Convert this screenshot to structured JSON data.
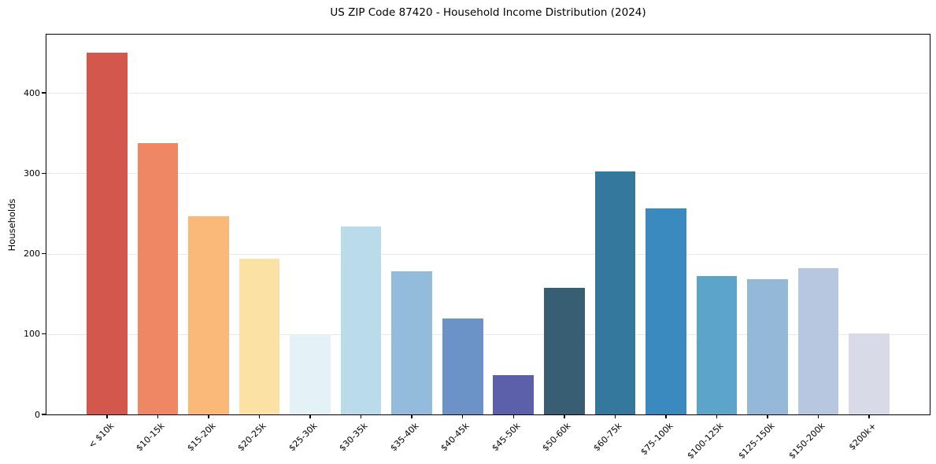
{
  "chart_data": {
    "type": "bar",
    "title": "US ZIP Code 87420 - Household Income Distribution (2024)",
    "xlabel": "",
    "ylabel": "Households",
    "categories": [
      "< $10k",
      "$10-15k",
      "$15-20k",
      "$20-25k",
      "$25-30k",
      "$30-35k",
      "$35-40k",
      "$40-45k",
      "$45-50k",
      "$50-60k",
      "$60-75k",
      "$75-100k",
      "$100-125k",
      "$125-150k",
      "$150-200k",
      "$200k+"
    ],
    "values": [
      450,
      338,
      247,
      194,
      100,
      234,
      178,
      119,
      49,
      158,
      302,
      256,
      172,
      168,
      182,
      101
    ],
    "bar_colors": [
      "#d4574e",
      "#f08764",
      "#fab978",
      "#fce1a4",
      "#e4f1f7",
      "#badbea",
      "#92bbdc",
      "#6b93c8",
      "#5c60aa",
      "#385e73",
      "#35789d",
      "#3a8abf",
      "#5da4ca",
      "#93b8d8",
      "#b7c7e0",
      "#d8dae7"
    ],
    "ylim": [
      0,
      472.5
    ],
    "yticks": [
      0,
      100,
      200,
      300,
      400
    ],
    "grid": true,
    "grid_color": "#e8e8e8",
    "axis_color": "#000000",
    "text_color": "#000000",
    "legend_position": "none",
    "x_tick_rotation": 45,
    "x_margin_units": 1.19,
    "bar_width_units": 0.8
  }
}
